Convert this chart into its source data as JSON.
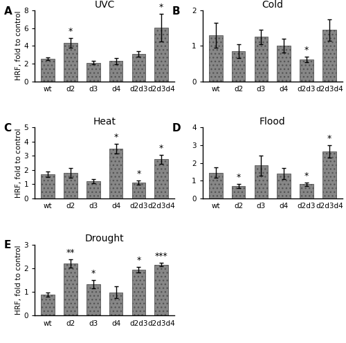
{
  "panels": [
    {
      "label": "A",
      "title": "UVC",
      "ylim": [
        0,
        8
      ],
      "yticks": [
        0,
        2,
        4,
        6,
        8
      ],
      "categories": [
        "wt",
        "d2",
        "d3",
        "d4",
        "d2d3",
        "d2d3d4"
      ],
      "values": [
        2.55,
        4.3,
        2.1,
        2.3,
        3.1,
        6.05
      ],
      "errors": [
        0.15,
        0.55,
        0.2,
        0.35,
        0.3,
        1.55
      ],
      "asterisks": [
        "",
        "*",
        "",
        "",
        "",
        "*"
      ],
      "ylabel": "HRF, fold to control"
    },
    {
      "label": "B",
      "title": "Cold",
      "ylim": [
        0,
        2
      ],
      "yticks": [
        0,
        1,
        2
      ],
      "categories": [
        "wt",
        "d2",
        "d3",
        "d4",
        "d2d3",
        "d2d3d4"
      ],
      "values": [
        1.3,
        0.85,
        1.25,
        1.0,
        0.62,
        1.45
      ],
      "errors": [
        0.35,
        0.2,
        0.2,
        0.2,
        0.08,
        0.3
      ],
      "asterisks": [
        "",
        "",
        "",
        "",
        "*",
        ""
      ],
      "ylabel": ""
    },
    {
      "label": "C",
      "title": "Heat",
      "ylim": [
        0,
        5
      ],
      "yticks": [
        0,
        1,
        2,
        3,
        4,
        5
      ],
      "categories": [
        "wt",
        "d2",
        "d3",
        "d4",
        "d2d3",
        "d2d3d4"
      ],
      "values": [
        1.7,
        1.8,
        1.2,
        3.5,
        1.1,
        2.75
      ],
      "errors": [
        0.2,
        0.35,
        0.15,
        0.35,
        0.15,
        0.3
      ],
      "asterisks": [
        "",
        "",
        "",
        "*",
        "*",
        "*"
      ],
      "ylabel": "HRF, fold to control"
    },
    {
      "label": "D",
      "title": "Flood",
      "ylim": [
        0,
        4
      ],
      "yticks": [
        0,
        1,
        2,
        3,
        4
      ],
      "categories": [
        "wt",
        "d2",
        "d3",
        "d4",
        "d2d3",
        "d2d3d4"
      ],
      "values": [
        1.45,
        0.7,
        1.85,
        1.4,
        0.8,
        2.65
      ],
      "errors": [
        0.3,
        0.1,
        0.55,
        0.3,
        0.1,
        0.35
      ],
      "asterisks": [
        "",
        "*",
        "",
        "",
        "*",
        "*"
      ],
      "ylabel": ""
    },
    {
      "label": "E",
      "title": "Drought",
      "ylim": [
        0,
        3
      ],
      "yticks": [
        0,
        1,
        2,
        3
      ],
      "categories": [
        "wt",
        "d2",
        "d3",
        "d4",
        "d2d3",
        "d2d3d4"
      ],
      "values": [
        0.88,
        2.2,
        1.32,
        0.98,
        1.93,
        2.15
      ],
      "errors": [
        0.08,
        0.18,
        0.18,
        0.25,
        0.12,
        0.08
      ],
      "asterisks": [
        "",
        "**",
        "*",
        "",
        "*",
        "***"
      ],
      "ylabel": "HRF, fold to control"
    }
  ],
  "bar_color": "#878787",
  "bar_edge_color": "#555555",
  "bar_width": 0.6,
  "background_color": "#ffffff",
  "label_fontsize": 11,
  "title_fontsize": 10,
  "tick_fontsize": 7.5,
  "ylabel_fontsize": 7.5,
  "asterisk_fontsize": 9
}
